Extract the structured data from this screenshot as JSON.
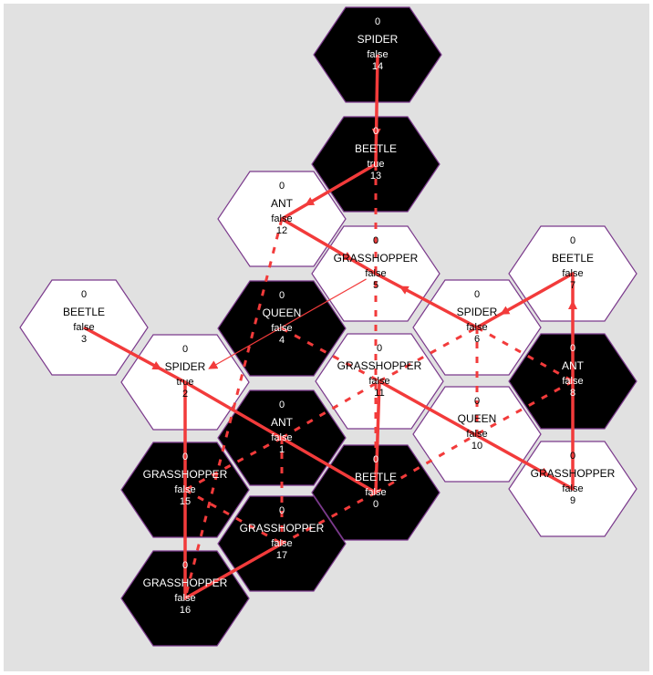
{
  "colors": {
    "background": "#e1e1e1",
    "hex_outline": "#7b3a8c",
    "black_hex": "#000000",
    "white_hex": "#ffffff",
    "arrow": "#f23b3b"
  },
  "tiles": [
    {
      "id": "0",
      "count": "0",
      "type": "BEETLE",
      "flag": "false",
      "color": "black"
    },
    {
      "id": "1",
      "count": "0",
      "type": "ANT",
      "flag": "false",
      "color": "black"
    },
    {
      "id": "2",
      "count": "0",
      "type": "SPIDER",
      "flag": "true",
      "color": "white"
    },
    {
      "id": "3",
      "count": "0",
      "type": "BEETLE",
      "flag": "false",
      "color": "white"
    },
    {
      "id": "4",
      "count": "0",
      "type": "QUEEN",
      "flag": "false",
      "color": "black"
    },
    {
      "id": "5",
      "count": "0",
      "type": "GRASSHOPPER",
      "flag": "false",
      "color": "white"
    },
    {
      "id": "6",
      "count": "0",
      "type": "SPIDER",
      "flag": "false",
      "color": "white"
    },
    {
      "id": "7",
      "count": "0",
      "type": "BEETLE",
      "flag": "false",
      "color": "white"
    },
    {
      "id": "8",
      "count": "0",
      "type": "ANT",
      "flag": "false",
      "color": "black"
    },
    {
      "id": "9",
      "count": "0",
      "type": "GRASSHOPPER",
      "flag": "false",
      "color": "white"
    },
    {
      "id": "10",
      "count": "0",
      "type": "QUEEN",
      "flag": "false",
      "color": "white"
    },
    {
      "id": "11",
      "count": "0",
      "type": "GRASSHOPPER",
      "flag": "false",
      "color": "white"
    },
    {
      "id": "12",
      "count": "0",
      "type": "ANT",
      "flag": "false",
      "color": "white"
    },
    {
      "id": "13",
      "count": "0",
      "type": "BEETLE",
      "flag": "true",
      "color": "black"
    },
    {
      "id": "14",
      "count": "0",
      "type": "SPIDER",
      "flag": "false",
      "color": "black"
    },
    {
      "id": "15",
      "count": "0",
      "type": "GRASSHOPPER",
      "flag": "false",
      "color": "black"
    },
    {
      "id": "16",
      "count": "0",
      "type": "GRASSHOPPER",
      "flag": "false",
      "color": "black"
    },
    {
      "id": "17",
      "count": "0",
      "type": "GRASSHOPPER",
      "flag": "false",
      "color": "black"
    }
  ],
  "thick_path": [
    "14",
    "13",
    "12",
    "5",
    "6",
    "7",
    "9",
    "11",
    "0",
    "2",
    "16",
    "17"
  ],
  "thick_path_extra": [
    [
      "3",
      "2"
    ]
  ],
  "dotted_links": [
    [
      "13",
      "0"
    ],
    [
      "12",
      "16"
    ],
    [
      "6",
      "10"
    ],
    [
      "4",
      "11"
    ],
    [
      "11",
      "6"
    ],
    [
      "1",
      "17"
    ],
    [
      "1",
      "11"
    ],
    [
      "8",
      "10"
    ],
    [
      "6",
      "8"
    ],
    [
      "0",
      "10"
    ],
    [
      "15",
      "17"
    ],
    [
      "1",
      "15"
    ],
    [
      "0",
      "17"
    ]
  ],
  "thin_arrows": [
    [
      "14",
      "13"
    ],
    [
      "13",
      "12"
    ],
    [
      "12",
      "5"
    ],
    [
      "5",
      "2"
    ],
    [
      "3",
      "2"
    ],
    [
      "7",
      "6"
    ],
    [
      "6",
      "5"
    ],
    [
      "11",
      "9"
    ],
    [
      "9",
      "7"
    ]
  ]
}
